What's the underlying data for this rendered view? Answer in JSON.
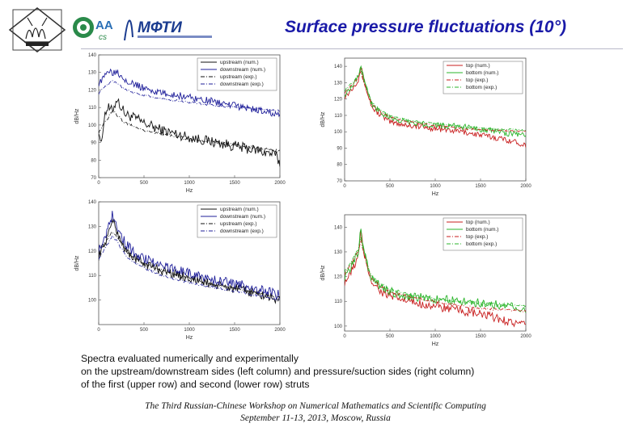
{
  "title": "Surface pressure fluctuations (10°)",
  "logos": {
    "mipt": "МФТИ",
    "aa": "AA",
    "cs": "cs"
  },
  "caption": {
    "line1": "Spectra evaluated numerically and experimentally",
    "line2": "on the upstream/downstream sides (left column) and pressure/suction sides (right column)",
    "line3": "of the first (upper row) and second (lower row) struts"
  },
  "footer": {
    "line1": "The Third Russian-Chinese Workshop on Numerical Mathematics and Scientific Computing",
    "line2": "September 11-13, 2013, Moscow, Russia"
  },
  "colors": {
    "title": "#1a1aa8",
    "black": "#111111",
    "blue": "#1f1f9a",
    "red": "#c81e1e",
    "green": "#2bb52b"
  },
  "chart_data": [
    {
      "type": "line",
      "xlabel": "Hz",
      "ylabel": "dB/Hz",
      "xlim": [
        0,
        2000
      ],
      "ylim": [
        70,
        140
      ],
      "xticks": [
        0,
        500,
        1000,
        1500,
        2000
      ],
      "yticks": [
        70,
        80,
        90,
        100,
        110,
        120,
        130,
        140
      ],
      "legend": "top-right",
      "series": [
        {
          "name": "upstream (num.)",
          "color": "#111111",
          "dash": "solid",
          "noise": 3,
          "x": [
            0,
            30,
            60,
            100,
            150,
            200,
            250,
            300,
            400,
            500,
            700,
            1000,
            1300,
            1600,
            1800,
            1950,
            2000
          ],
          "y": [
            98,
            88,
            105,
            110,
            108,
            115,
            110,
            106,
            104,
            101,
            97,
            93,
            90,
            87,
            85,
            83,
            78
          ]
        },
        {
          "name": "downstream (num.)",
          "color": "#1f1f9a",
          "dash": "solid",
          "noise": 2,
          "x": [
            0,
            50,
            100,
            150,
            200,
            250,
            300,
            400,
            500,
            700,
            1000,
            1300,
            1600,
            1800,
            2000
          ],
          "y": [
            124,
            126,
            132,
            130,
            131,
            128,
            126,
            123,
            121,
            118,
            116,
            113,
            110,
            108,
            106
          ]
        },
        {
          "name": "upstream (exp.)",
          "color": "#111111",
          "dash": "dashdot",
          "noise": 0.8,
          "x": [
            0,
            50,
            100,
            150,
            200,
            250,
            300,
            400,
            500,
            700,
            1000,
            1300,
            1600,
            2000
          ],
          "y": [
            96,
            100,
            104,
            108,
            106,
            103,
            101,
            99,
            97,
            95,
            92,
            90,
            88,
            85
          ]
        },
        {
          "name": "downstream (exp.)",
          "color": "#1f1f9a",
          "dash": "dashdot",
          "noise": 0.6,
          "x": [
            0,
            50,
            100,
            150,
            200,
            250,
            300,
            400,
            500,
            700,
            1000,
            1300,
            1600,
            2000
          ],
          "y": [
            118,
            121,
            123,
            125,
            124,
            122,
            120,
            118,
            117,
            115,
            113,
            111,
            110,
            108
          ]
        }
      ]
    },
    {
      "type": "line",
      "xlabel": "Hz",
      "ylabel": "dB/Hz",
      "xlim": [
        0,
        2000
      ],
      "ylim": [
        70,
        145
      ],
      "xticks": [
        0,
        500,
        1000,
        1500,
        2000
      ],
      "yticks": [
        70,
        80,
        90,
        100,
        110,
        120,
        130,
        140
      ],
      "legend": "top-right",
      "series": [
        {
          "name": "top (num.)",
          "color": "#c81e1e",
          "dash": "solid",
          "noise": 1.8,
          "x": [
            0,
            50,
            100,
            150,
            180,
            200,
            250,
            300,
            400,
            500,
            700,
            1000,
            1300,
            1600,
            1800,
            2000
          ],
          "y": [
            122,
            124,
            128,
            132,
            140,
            134,
            124,
            115,
            110,
            106,
            104,
            102,
            100,
            97,
            95,
            92
          ]
        },
        {
          "name": "bottom (num.)",
          "color": "#2bb52b",
          "dash": "solid",
          "noise": 1.8,
          "x": [
            0,
            50,
            100,
            150,
            180,
            200,
            250,
            300,
            400,
            500,
            700,
            1000,
            1300,
            1600,
            1800,
            2000
          ],
          "y": [
            123,
            126,
            130,
            134,
            141,
            136,
            126,
            117,
            112,
            108,
            106,
            104,
            103,
            101,
            99,
            98
          ]
        },
        {
          "name": "top (exp.)",
          "color": "#c81e1e",
          "dash": "dashdot",
          "noise": 0.5,
          "x": [
            0,
            50,
            100,
            150,
            180,
            200,
            250,
            300,
            400,
            500,
            700,
            1000,
            1300,
            1600,
            2000
          ],
          "y": [
            124,
            127,
            130,
            133,
            137,
            132,
            124,
            117,
            112,
            109,
            106,
            104,
            102,
            101,
            100
          ]
        },
        {
          "name": "bottom (exp.)",
          "color": "#2bb52b",
          "dash": "dashdot",
          "noise": 0.5,
          "x": [
            0,
            50,
            100,
            150,
            180,
            200,
            250,
            300,
            400,
            500,
            700,
            1000,
            1300,
            1600,
            2000
          ],
          "y": [
            125,
            128,
            131,
            134,
            138,
            133,
            125,
            118,
            113,
            110,
            107,
            105,
            103,
            102,
            101
          ]
        }
      ]
    },
    {
      "type": "line",
      "xlabel": "Hz",
      "ylabel": "dB/Hz",
      "xlim": [
        0,
        2000
      ],
      "ylim": [
        90,
        140
      ],
      "xticks": [
        0,
        500,
        1000,
        1500,
        2000
      ],
      "yticks": [
        100,
        110,
        120,
        130,
        140
      ],
      "legend": "top-right",
      "series": [
        {
          "name": "upstream (num.)",
          "color": "#111111",
          "dash": "solid",
          "noise": 2,
          "x": [
            0,
            50,
            100,
            150,
            200,
            250,
            300,
            400,
            500,
            700,
            1000,
            1300,
            1600,
            1800,
            2000
          ],
          "y": [
            118,
            122,
            126,
            133,
            128,
            124,
            120,
            117,
            115,
            112,
            109,
            106,
            104,
            102,
            100
          ]
        },
        {
          "name": "downstream (num.)",
          "color": "#1f1f9a",
          "dash": "solid",
          "noise": 2,
          "x": [
            0,
            50,
            100,
            150,
            200,
            250,
            300,
            400,
            500,
            700,
            1000,
            1300,
            1600,
            1800,
            2000
          ],
          "y": [
            120,
            124,
            129,
            135,
            131,
            126,
            123,
            119,
            117,
            114,
            111,
            108,
            106,
            104,
            102
          ]
        },
        {
          "name": "upstream (exp.)",
          "color": "#111111",
          "dash": "dashdot",
          "noise": 0.5,
          "x": [
            0,
            50,
            100,
            150,
            200,
            250,
            300,
            400,
            500,
            700,
            1000,
            1300,
            1600,
            2000
          ],
          "y": [
            119,
            122,
            125,
            128,
            126,
            123,
            120,
            117,
            115,
            112,
            109,
            106,
            104,
            101
          ]
        },
        {
          "name": "downstream (exp.)",
          "color": "#1f1f9a",
          "dash": "dashdot",
          "noise": 0.5,
          "x": [
            0,
            50,
            100,
            150,
            200,
            250,
            300,
            400,
            500,
            700,
            1000,
            1300,
            1600,
            2000
          ],
          "y": [
            117,
            120,
            123,
            126,
            124,
            121,
            118,
            115,
            113,
            110,
            107,
            105,
            103,
            100
          ]
        }
      ]
    },
    {
      "type": "line",
      "xlabel": "Hz",
      "ylabel": "dB/Hz",
      "xlim": [
        0,
        2000
      ],
      "ylim": [
        98,
        145
      ],
      "xticks": [
        0,
        500,
        1000,
        1500,
        2000
      ],
      "yticks": [
        100,
        110,
        120,
        130,
        140
      ],
      "legend": "top-right",
      "series": [
        {
          "name": "top (num.)",
          "color": "#c81e1e",
          "dash": "solid",
          "noise": 1.8,
          "x": [
            0,
            50,
            100,
            150,
            180,
            200,
            250,
            300,
            400,
            500,
            700,
            1000,
            1300,
            1600,
            1800,
            2000
          ],
          "y": [
            118,
            120,
            124,
            128,
            138,
            132,
            124,
            118,
            114,
            112,
            110,
            108,
            106,
            104,
            102,
            100
          ]
        },
        {
          "name": "bottom (num.)",
          "color": "#2bb52b",
          "dash": "solid",
          "noise": 1.8,
          "x": [
            0,
            50,
            100,
            150,
            180,
            200,
            250,
            300,
            400,
            500,
            700,
            1000,
            1300,
            1600,
            1800,
            2000
          ],
          "y": [
            120,
            122,
            126,
            130,
            139,
            133,
            125,
            119,
            116,
            114,
            112,
            111,
            110,
            109,
            108,
            107
          ]
        },
        {
          "name": "top (exp.)",
          "color": "#c81e1e",
          "dash": "dashdot",
          "noise": 0.5,
          "x": [
            0,
            50,
            100,
            150,
            180,
            200,
            250,
            300,
            400,
            500,
            700,
            1000,
            1300,
            1600,
            2000
          ],
          "y": [
            121,
            124,
            127,
            130,
            135,
            131,
            124,
            119,
            116,
            114,
            112,
            110,
            108,
            107,
            106
          ]
        },
        {
          "name": "bottom (exp.)",
          "color": "#2bb52b",
          "dash": "dashdot",
          "noise": 0.5,
          "x": [
            0,
            50,
            100,
            150,
            180,
            200,
            250,
            300,
            400,
            500,
            700,
            1000,
            1300,
            1600,
            2000
          ],
          "y": [
            122,
            125,
            128,
            131,
            136,
            132,
            125,
            120,
            117,
            115,
            113,
            111,
            110,
            109,
            108
          ]
        }
      ]
    }
  ]
}
